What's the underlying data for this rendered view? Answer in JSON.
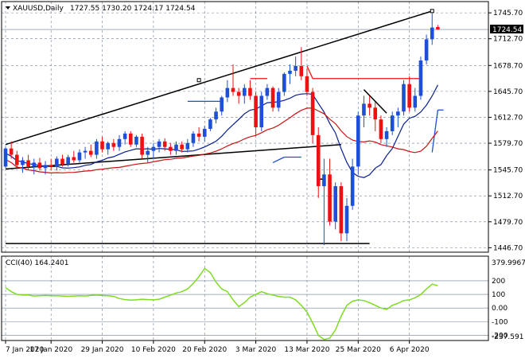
{
  "header": {
    "symbol": "XAUUSD,Daily",
    "ohlc": "1727.55 1730.20 1724.17 1724.54"
  },
  "indicator": {
    "label": "CCI(40) 164.2401",
    "max_label": "379.9967",
    "min_label": "-237.591",
    "levels": [
      "200",
      "100",
      "0.00",
      "-100",
      "-200"
    ]
  },
  "price_axis": {
    "ticks": [
      "1745.70",
      "1712.70",
      "1678.70",
      "1645.70",
      "1612.70",
      "1579.70",
      "1545.70",
      "1512.70",
      "1479.70",
      "1446.70"
    ],
    "current_tag": "1724.54"
  },
  "time_axis": {
    "ticks": [
      "7 Jan 2020",
      "17 Jan 2020",
      "29 Jan 2020",
      "10 Feb 2020",
      "20 Feb 2020",
      "3 Mar 2020",
      "13 Mar 2020",
      "25 Mar 2020",
      "6 Apr 2020"
    ]
  },
  "colors": {
    "bull": "#1d4fd8",
    "bear": "#ee1111",
    "cci": "#7fdc24",
    "fast_ma": "#0a1f8f",
    "slow_ma": "#cc1111",
    "grid": "#6f7f95",
    "tag_bg": "#000000"
  },
  "chart_data": {
    "type": "candlestick",
    "title": "XAUUSD,Daily",
    "ylim": [
      1441,
      1760
    ],
    "current_price": 1724.54,
    "candles": [
      [
        1550,
        1575,
        1548,
        1573
      ],
      [
        1573,
        1582,
        1560,
        1565
      ],
      [
        1565,
        1570,
        1548,
        1552
      ],
      [
        1552,
        1562,
        1542,
        1558
      ],
      [
        1558,
        1565,
        1546,
        1550
      ],
      [
        1550,
        1560,
        1540,
        1555
      ],
      [
        1555,
        1561,
        1545,
        1548
      ],
      [
        1548,
        1557,
        1540,
        1552
      ],
      [
        1552,
        1560,
        1546,
        1550
      ],
      [
        1550,
        1563,
        1545,
        1560
      ],
      [
        1560,
        1565,
        1550,
        1553
      ],
      [
        1553,
        1565,
        1550,
        1562
      ],
      [
        1562,
        1570,
        1555,
        1558
      ],
      [
        1558,
        1572,
        1555,
        1568
      ],
      [
        1568,
        1575,
        1560,
        1570
      ],
      [
        1570,
        1578,
        1562,
        1565
      ],
      [
        1565,
        1585,
        1560,
        1582
      ],
      [
        1582,
        1588,
        1568,
        1572
      ],
      [
        1572,
        1582,
        1565,
        1580
      ],
      [
        1580,
        1585,
        1570,
        1575
      ],
      [
        1575,
        1590,
        1570,
        1585
      ],
      [
        1585,
        1595,
        1578,
        1592
      ],
      [
        1592,
        1595,
        1575,
        1578
      ],
      [
        1578,
        1590,
        1575,
        1588
      ],
      [
        1588,
        1592,
        1560,
        1565
      ],
      [
        1565,
        1575,
        1555,
        1570
      ],
      [
        1570,
        1580,
        1560,
        1575
      ],
      [
        1575,
        1585,
        1568,
        1582
      ],
      [
        1582,
        1586,
        1570,
        1575
      ],
      [
        1575,
        1580,
        1565,
        1570
      ],
      [
        1570,
        1582,
        1565,
        1578
      ],
      [
        1578,
        1582,
        1568,
        1572
      ],
      [
        1572,
        1585,
        1568,
        1580
      ],
      [
        1580,
        1595,
        1575,
        1592
      ],
      [
        1592,
        1600,
        1582,
        1588
      ],
      [
        1588,
        1602,
        1582,
        1598
      ],
      [
        1598,
        1612,
        1595,
        1610
      ],
      [
        1610,
        1625,
        1605,
        1620
      ],
      [
        1620,
        1640,
        1615,
        1638
      ],
      [
        1638,
        1660,
        1632,
        1650
      ],
      [
        1650,
        1680,
        1640,
        1645
      ],
      [
        1645,
        1650,
        1630,
        1640
      ],
      [
        1640,
        1655,
        1630,
        1650
      ],
      [
        1650,
        1660,
        1635,
        1640
      ],
      [
        1640,
        1645,
        1590,
        1600
      ],
      [
        1600,
        1645,
        1595,
        1640
      ],
      [
        1640,
        1655,
        1635,
        1650
      ],
      [
        1650,
        1652,
        1620,
        1625
      ],
      [
        1625,
        1650,
        1620,
        1645
      ],
      [
        1645,
        1670,
        1640,
        1668
      ],
      [
        1668,
        1680,
        1655,
        1672
      ],
      [
        1672,
        1690,
        1665,
        1678
      ],
      [
        1678,
        1702,
        1660,
        1665
      ],
      [
        1665,
        1675,
        1640,
        1645
      ],
      [
        1645,
        1650,
        1580,
        1590
      ],
      [
        1590,
        1600,
        1510,
        1525
      ],
      [
        1525,
        1560,
        1450,
        1540
      ],
      [
        1540,
        1560,
        1475,
        1480
      ],
      [
        1480,
        1530,
        1470,
        1525
      ],
      [
        1525,
        1530,
        1455,
        1465
      ],
      [
        1465,
        1510,
        1455,
        1500
      ],
      [
        1500,
        1560,
        1495,
        1550
      ],
      [
        1550,
        1620,
        1540,
        1615
      ],
      [
        1615,
        1640,
        1600,
        1630
      ],
      [
        1630,
        1640,
        1615,
        1625
      ],
      [
        1625,
        1632,
        1595,
        1610
      ],
      [
        1610,
        1615,
        1580,
        1585
      ],
      [
        1585,
        1600,
        1575,
        1595
      ],
      [
        1595,
        1620,
        1590,
        1615
      ],
      [
        1615,
        1625,
        1600,
        1620
      ],
      [
        1620,
        1660,
        1615,
        1655
      ],
      [
        1655,
        1665,
        1620,
        1625
      ],
      [
        1625,
        1650,
        1620,
        1640
      ],
      [
        1640,
        1690,
        1635,
        1685
      ],
      [
        1685,
        1718,
        1680,
        1712
      ],
      [
        1712,
        1745,
        1705,
        1727
      ],
      [
        1727.55,
        1730.2,
        1724.17,
        1724.54
      ]
    ],
    "cci": [
      150,
      120,
      100,
      95,
      95,
      88,
      90,
      92,
      90,
      90,
      88,
      86,
      88,
      90,
      88,
      92,
      95,
      92,
      90,
      85,
      70,
      62,
      58,
      60,
      65,
      62,
      60,
      65,
      80,
      95,
      110,
      120,
      140,
      180,
      230,
      290,
      260,
      190,
      140,
      120,
      60,
      10,
      40,
      80,
      100,
      120,
      105,
      95,
      85,
      80,
      80,
      60,
      20,
      -30,
      -110,
      -200,
      -230,
      -220,
      -160,
      -60,
      20,
      50,
      60,
      55,
      40,
      20,
      0,
      -10,
      20,
      35,
      55,
      60,
      75,
      100,
      140,
      175,
      164
    ]
  }
}
